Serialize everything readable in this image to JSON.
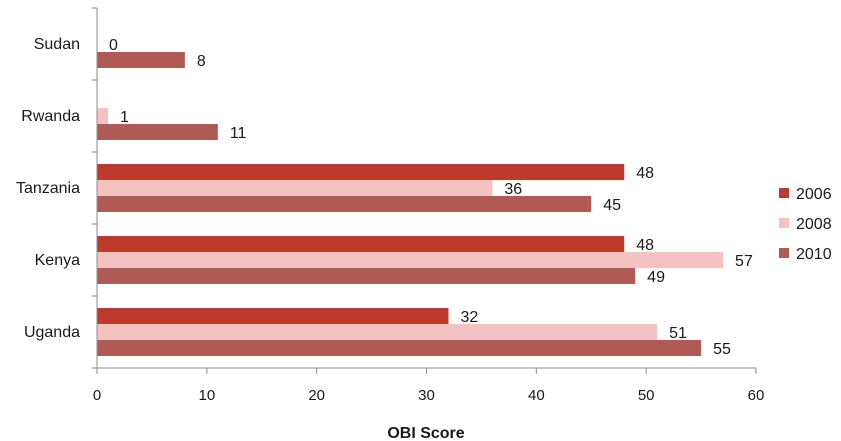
{
  "chart_data": {
    "type": "bar",
    "orientation": "horizontal",
    "title": "",
    "xlabel": "OBI Score",
    "ylabel": "",
    "xlim": [
      0,
      60
    ],
    "xticks": [
      0,
      10,
      20,
      30,
      40,
      50,
      60
    ],
    "categories": [
      "Sudan",
      "Rwanda",
      "Tanzania",
      "Kenya",
      "Uganda"
    ],
    "series": [
      {
        "name": "2006",
        "color": "#be3a2a",
        "values": [
          null,
          null,
          48,
          48,
          32
        ]
      },
      {
        "name": "2008",
        "color": "#f5c2c2",
        "values": [
          0,
          1,
          36,
          57,
          51
        ]
      },
      {
        "name": "2010",
        "color": "#b05a55",
        "values": [
          8,
          11,
          45,
          49,
          55
        ]
      }
    ],
    "grid": false,
    "legend_position": "right"
  }
}
